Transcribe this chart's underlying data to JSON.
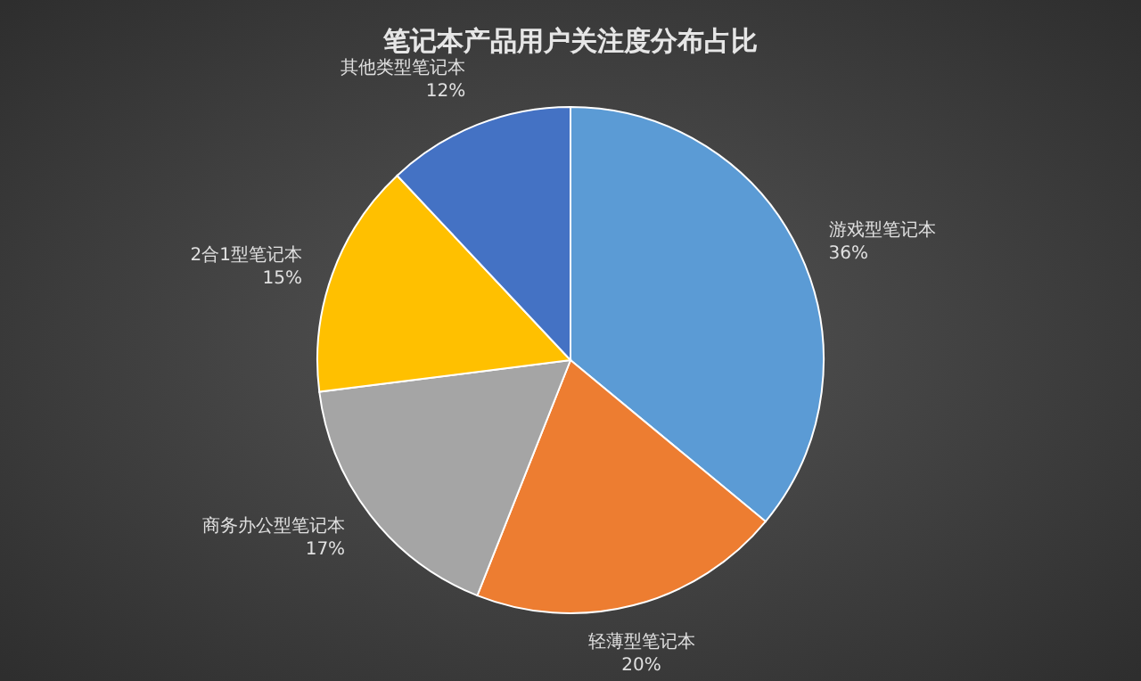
{
  "chart_data": {
    "type": "pie",
    "title": "笔记本产品用户关注度分布占比",
    "categories": [
      "游戏型笔记本",
      "轻薄型笔记本",
      "商务办公型笔记本",
      "2合1型笔记本",
      "其他类型笔记本"
    ],
    "values": [
      36,
      20,
      17,
      15,
      12
    ],
    "value_labels": [
      "36%",
      "20%",
      "17%",
      "15%",
      "12%"
    ],
    "colors": [
      "#5b9bd5",
      "#ed7d31",
      "#a5a5a5",
      "#ffc000",
      "#4472c4"
    ]
  }
}
